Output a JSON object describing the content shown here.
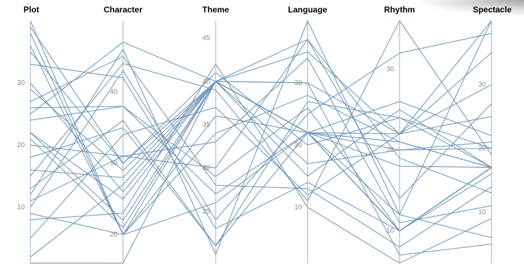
{
  "chart_data": {
    "type": "parallel-coordinates",
    "dimensions": [
      {
        "name": "Plot",
        "range": [
          1,
          40
        ],
        "ticks": [
          10,
          20,
          30
        ]
      },
      {
        "name": "Character",
        "range": [
          16,
          50
        ],
        "ticks": [
          20,
          30,
          40
        ]
      },
      {
        "name": "Theme",
        "range": [
          19,
          47
        ],
        "ticks": [
          25,
          30,
          35,
          40,
          45
        ]
      },
      {
        "name": "Language",
        "range": [
          1,
          40
        ],
        "ticks": [
          10,
          20,
          30
        ]
      },
      {
        "name": "Rhythm",
        "range": [
          6,
          36
        ],
        "ticks": [
          10,
          20,
          30
        ]
      },
      {
        "name": "Spectacle",
        "range": [
          2,
          40
        ],
        "ticks": [
          10,
          20,
          30
        ]
      }
    ],
    "series": [
      {
        "values": [
          40,
          20,
          40,
          22,
          10,
          17
        ]
      },
      {
        "values": [
          35,
          30,
          40,
          30,
          22,
          30
        ]
      },
      {
        "values": [
          33,
          42,
          23,
          14,
          10,
          17
        ]
      },
      {
        "values": [
          22,
          25,
          40,
          22,
          20,
          20
        ]
      },
      {
        "values": [
          26,
          38,
          29,
          26,
          10,
          17
        ]
      },
      {
        "values": [
          22,
          22,
          40,
          22,
          18,
          17
        ]
      },
      {
        "values": [
          20,
          31,
          30,
          37,
          14,
          27
        ]
      },
      {
        "values": [
          18,
          35,
          21,
          27,
          24,
          20
        ]
      },
      {
        "values": [
          16,
          28,
          40,
          22,
          22,
          35
        ]
      },
      {
        "values": [
          15,
          44,
          39,
          11,
          36,
          19
        ]
      },
      {
        "values": [
          13,
          36,
          21,
          22,
          21,
          17
        ]
      },
      {
        "values": [
          11,
          31,
          33,
          34,
          11,
          11
        ]
      },
      {
        "values": [
          10,
          43,
          24,
          25,
          32,
          38
        ]
      },
      {
        "values": [
          8,
          23,
          42,
          10,
          6,
          9
        ]
      },
      {
        "values": [
          30,
          26,
          40,
          35,
          22,
          25
        ]
      },
      {
        "values": [
          2,
          27,
          40,
          15,
          25,
          17
        ]
      },
      {
        "values": [
          1,
          16,
          40,
          22,
          10,
          17
        ]
      },
      {
        "values": [
          38,
          20,
          36,
          22,
          10,
          16
        ]
      },
      {
        "values": [
          27,
          45,
          28,
          13,
          8,
          14
        ]
      },
      {
        "values": [
          9,
          20,
          34,
          28,
          21,
          17
        ]
      },
      {
        "values": [
          24,
          38,
          27,
          22,
          12,
          40
        ]
      },
      {
        "values": [
          29,
          29,
          40,
          37,
          19,
          13
        ]
      },
      {
        "values": [
          39,
          30,
          41,
          20,
          24,
          17
        ]
      },
      {
        "values": [
          12,
          46,
          20,
          40,
          12,
          6
        ]
      },
      {
        "values": [
          36,
          20,
          26,
          22,
          26,
          22
        ]
      },
      {
        "values": [
          21,
          21,
          40,
          30,
          7,
          5
        ]
      },
      {
        "values": [
          5,
          34,
          37,
          12,
          22,
          40
        ]
      },
      {
        "values": [
          25,
          47,
          40,
          17,
          20,
          21
        ]
      }
    ],
    "grid": false,
    "legend": "none"
  }
}
